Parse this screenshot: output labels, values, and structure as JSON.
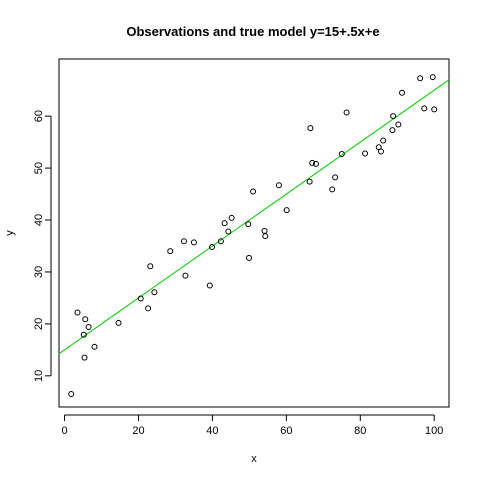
{
  "chart_data": {
    "type": "scatter",
    "title": "Observations and true model y=15+.5x+e",
    "xlabel": "x",
    "ylabel": "y",
    "xlim": [
      -1.5,
      104
    ],
    "ylim": [
      4,
      71
    ],
    "x_ticks": [
      0,
      20,
      40,
      60,
      80,
      100
    ],
    "y_ticks": [
      10,
      20,
      30,
      40,
      50,
      60
    ],
    "grid": false,
    "legend": "none",
    "point_color": "#000000",
    "line_color": "#00cc00",
    "line": {
      "intercept": 15,
      "slope": 0.5
    },
    "points": [
      [
        1.8,
        6.5
      ],
      [
        3.5,
        22.2
      ],
      [
        5.2,
        17.9
      ],
      [
        5.4,
        13.5
      ],
      [
        5.6,
        20.9
      ],
      [
        6.5,
        19.4
      ],
      [
        8.1,
        15.6
      ],
      [
        14.6,
        20.2
      ],
      [
        20.6,
        24.9
      ],
      [
        22.6,
        23.0
      ],
      [
        23.2,
        31.1
      ],
      [
        24.3,
        26.1
      ],
      [
        28.6,
        34.0
      ],
      [
        32.3,
        35.9
      ],
      [
        32.7,
        29.3
      ],
      [
        35.0,
        35.7
      ],
      [
        39.3,
        27.4
      ],
      [
        39.9,
        34.8
      ],
      [
        42.3,
        35.9
      ],
      [
        43.3,
        39.4
      ],
      [
        44.3,
        37.8
      ],
      [
        45.2,
        40.4
      ],
      [
        49.7,
        39.2
      ],
      [
        49.9,
        32.7
      ],
      [
        51.0,
        45.5
      ],
      [
        54.1,
        37.9
      ],
      [
        54.3,
        36.9
      ],
      [
        58.0,
        46.7
      ],
      [
        60.1,
        41.9
      ],
      [
        66.3,
        47.4
      ],
      [
        66.5,
        57.7
      ],
      [
        67.0,
        51.0
      ],
      [
        68.0,
        50.8
      ],
      [
        72.4,
        45.9
      ],
      [
        73.2,
        48.2
      ],
      [
        75.0,
        52.7
      ],
      [
        76.3,
        60.7
      ],
      [
        81.3,
        52.8
      ],
      [
        85.0,
        54.0
      ],
      [
        85.6,
        53.2
      ],
      [
        86.2,
        55.3
      ],
      [
        88.7,
        57.3
      ],
      [
        88.9,
        60.0
      ],
      [
        90.3,
        58.4
      ],
      [
        91.3,
        64.5
      ],
      [
        96.2,
        67.3
      ],
      [
        97.3,
        61.5
      ],
      [
        99.6,
        67.5
      ],
      [
        100.0,
        61.3
      ]
    ]
  }
}
